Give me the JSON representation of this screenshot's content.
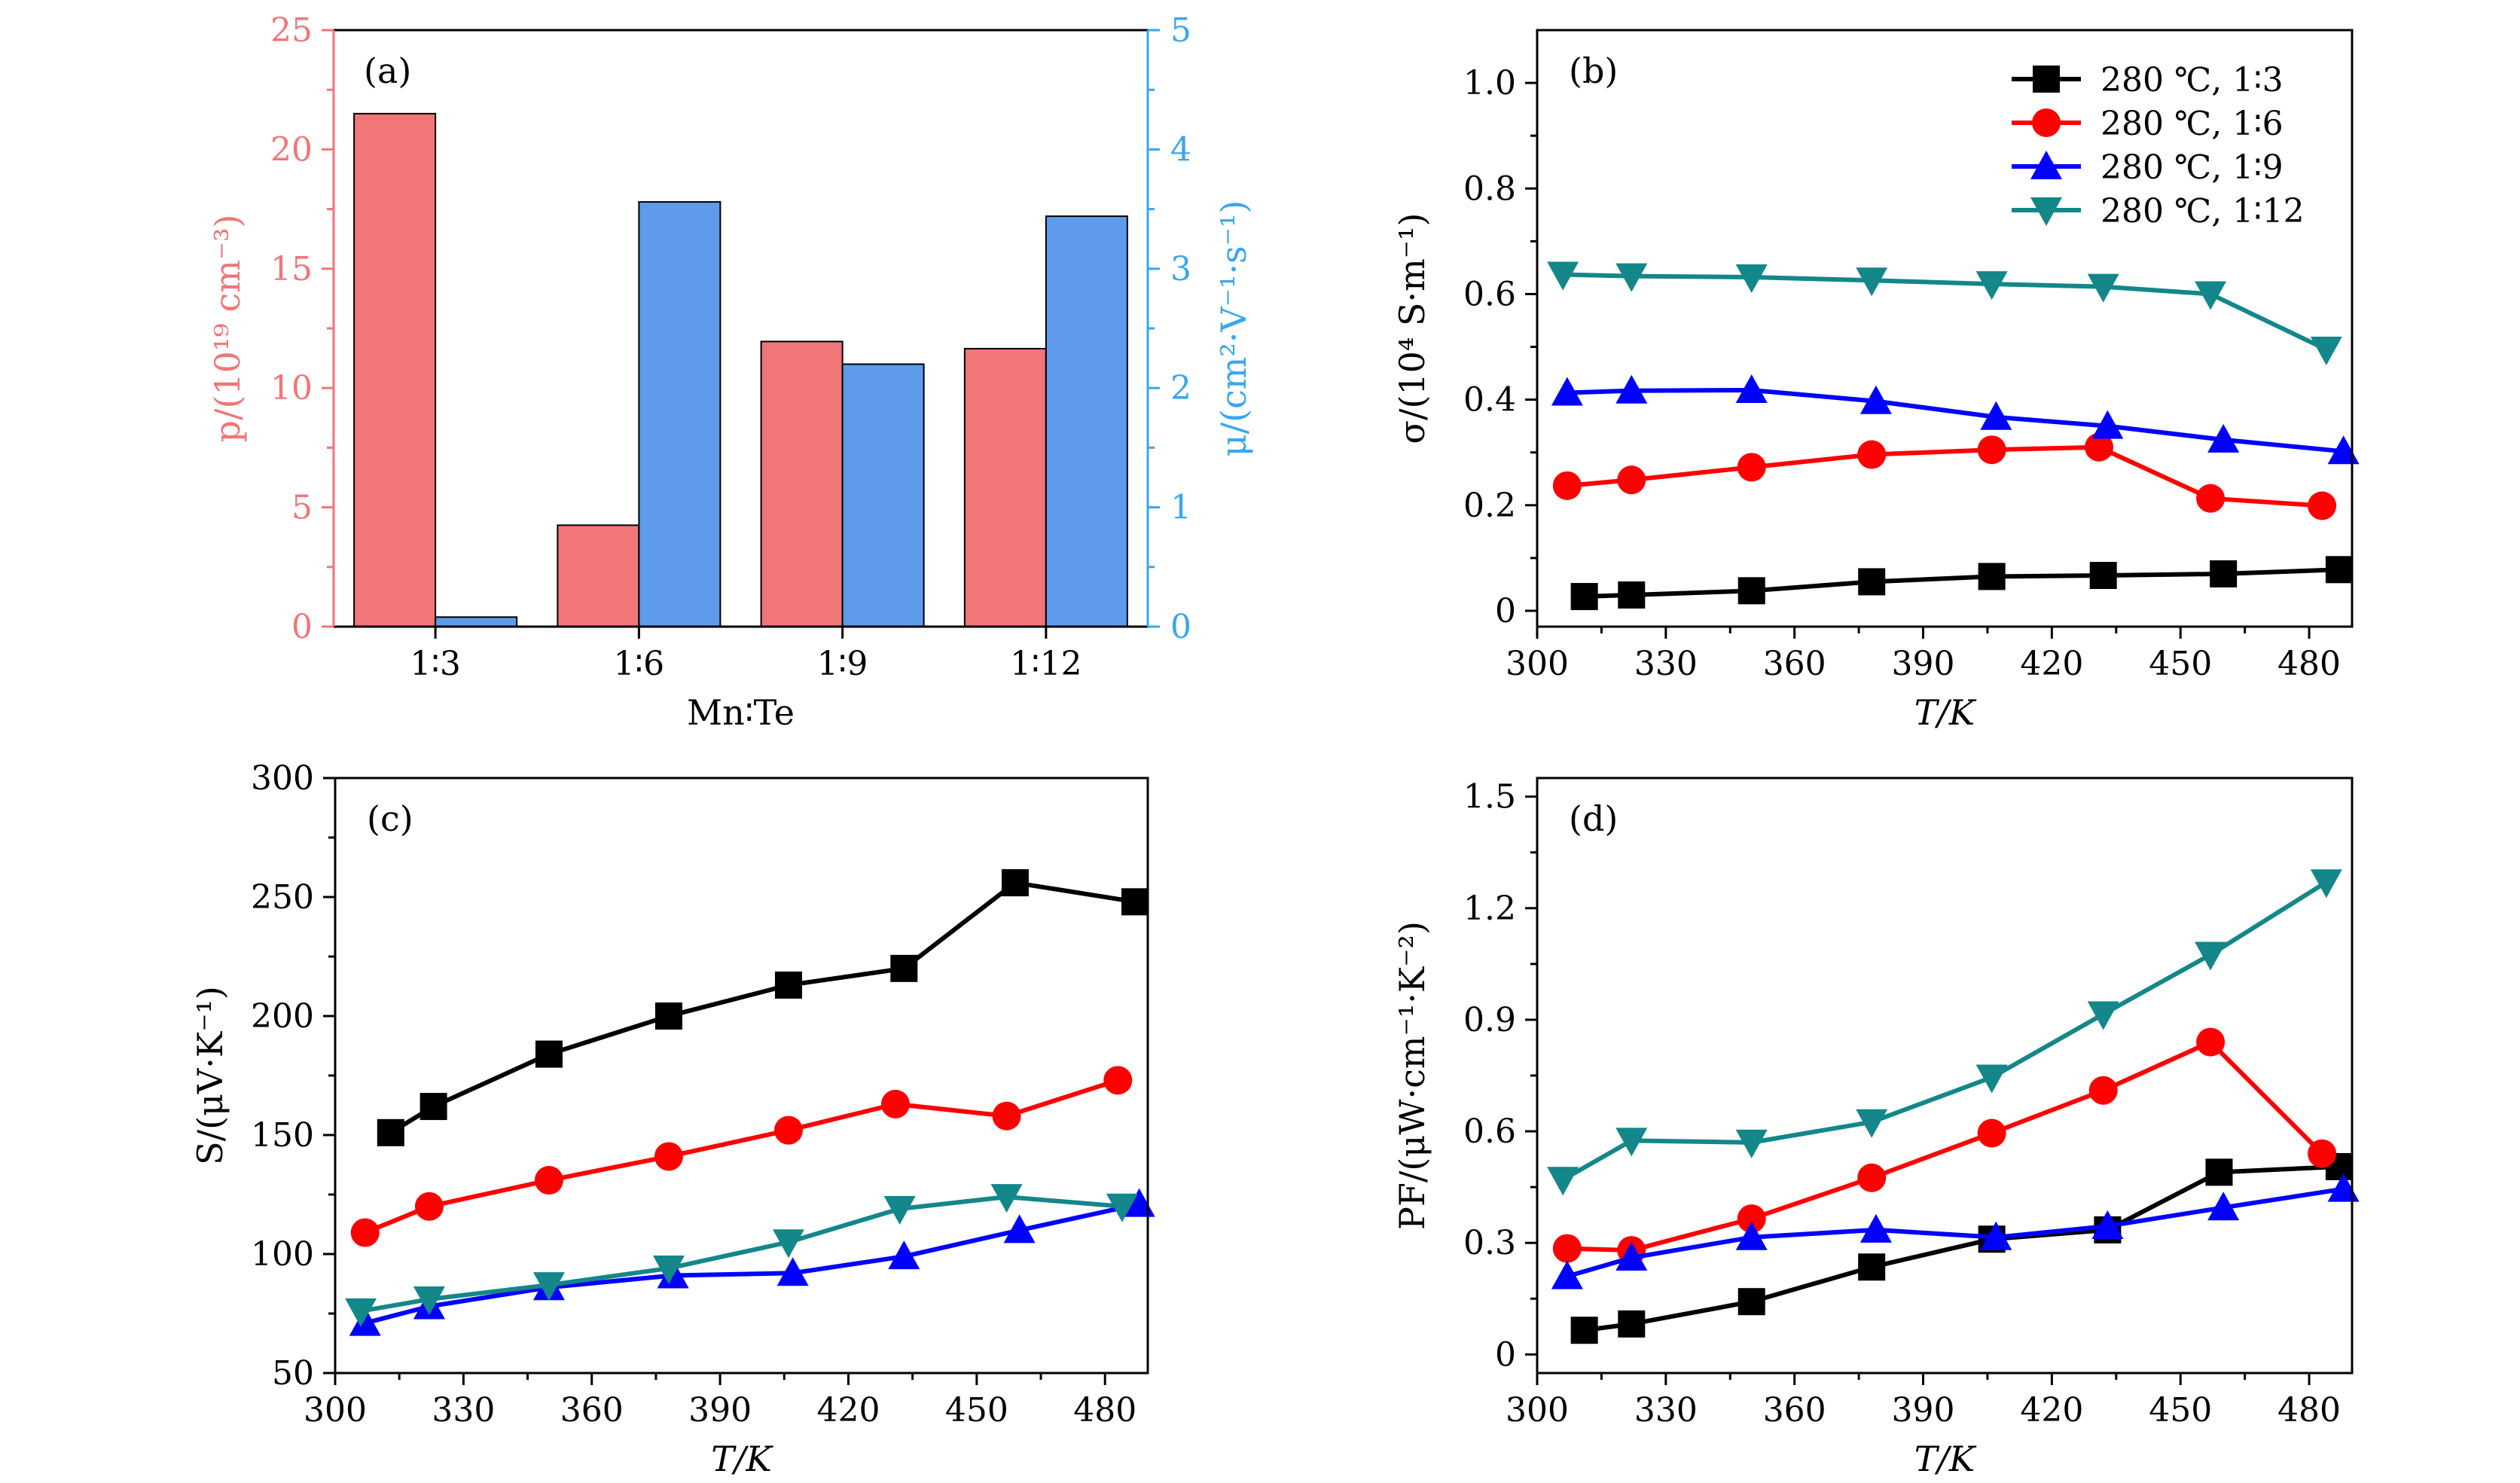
{
  "colors": {
    "bar_p": "#F07678",
    "bar_mu": "#5E9BEB",
    "axis_p": "#F07678",
    "axis_mu": "#39A6EF",
    "s1": "#000000",
    "s2": "#FF0000",
    "s3": "#0000FF",
    "s4": "#13878A"
  },
  "legend": [
    "280 ℃, 1∶3",
    "280 ℃, 1∶6",
    "280 ℃, 1∶9",
    "280 ℃, 1∶12"
  ],
  "chart_data": [
    {
      "panel": "(a)",
      "type": "bar",
      "xlabel": "Mn∶Te",
      "ylabel_left": "p/(10¹⁹ cm⁻³)",
      "ylabel_right": "μ/(cm²·V⁻¹·s⁻¹)",
      "categories": [
        "1∶3",
        "1∶6",
        "1∶9",
        "1∶12"
      ],
      "series": [
        {
          "values": [
            21.5,
            4.25,
            11.95,
            11.65
          ],
          "axis": "left"
        },
        {
          "values": [
            0.08,
            3.56,
            2.2,
            3.44
          ],
          "axis": "right"
        }
      ],
      "ylim_left": [
        0,
        25
      ],
      "yticks_left": [
        "0",
        "5",
        "10",
        "15",
        "20",
        "25"
      ],
      "ylim_right": [
        0,
        5
      ],
      "yticks_right": [
        "0",
        "1",
        "2",
        "3",
        "4",
        "5"
      ]
    },
    {
      "panel": "(b)",
      "type": "line",
      "xlabel": "T/K",
      "ylabel": "σ/(10⁴ S·m⁻¹)",
      "xlim": [
        300,
        490
      ],
      "ylim": [
        -0.03,
        1.1
      ],
      "xticks": [
        "300",
        "330",
        "360",
        "390",
        "420",
        "450",
        "480"
      ],
      "yticks": [
        "0",
        "0.2",
        "0.4",
        "0.6",
        "0.8",
        "1.0"
      ],
      "legend_position": "top-right",
      "series": [
        {
          "name": "280 ℃, 1∶3",
          "marker": "square",
          "x": [
            311,
            322,
            350,
            378,
            406,
            432,
            460,
            487
          ],
          "y": [
            0.027,
            0.03,
            0.038,
            0.055,
            0.065,
            0.067,
            0.07,
            0.078
          ]
        },
        {
          "name": "280 ℃, 1∶6",
          "marker": "circle",
          "x": [
            307,
            322,
            350,
            378,
            406,
            431,
            457,
            483
          ],
          "y": [
            0.237,
            0.248,
            0.272,
            0.296,
            0.305,
            0.31,
            0.213,
            0.199
          ]
        },
        {
          "name": "280 ℃, 1∶9",
          "marker": "triangle-up",
          "x": [
            307,
            322,
            350,
            379,
            407,
            433,
            460,
            488
          ],
          "y": [
            0.413,
            0.417,
            0.418,
            0.397,
            0.367,
            0.35,
            0.324,
            0.302
          ]
        },
        {
          "name": "280 ℃, 1∶12",
          "marker": "triangle-down",
          "x": [
            306,
            322,
            350,
            378,
            406,
            432,
            457,
            484
          ],
          "y": [
            0.637,
            0.634,
            0.632,
            0.626,
            0.619,
            0.614,
            0.6,
            0.495
          ]
        }
      ]
    },
    {
      "panel": "(c)",
      "type": "line",
      "xlabel": "T/K",
      "ylabel": "S/(μV·K⁻¹)",
      "xlim": [
        300,
        490
      ],
      "ylim": [
        50,
        300
      ],
      "xticks": [
        "300",
        "330",
        "360",
        "390",
        "420",
        "450",
        "480"
      ],
      "yticks": [
        "50",
        "100",
        "150",
        "200",
        "250",
        "300"
      ],
      "series": [
        {
          "name": "280 ℃, 1∶3",
          "marker": "square",
          "x": [
            313,
            323,
            350,
            378,
            406,
            433,
            459,
            487
          ],
          "y": [
            151,
            162,
            184,
            200,
            213,
            220,
            256,
            248
          ]
        },
        {
          "name": "280 ℃, 1∶6",
          "marker": "circle",
          "x": [
            307,
            322,
            350,
            378,
            406,
            431,
            457,
            483
          ],
          "y": [
            109,
            120,
            131,
            141,
            152,
            163,
            158,
            173
          ]
        },
        {
          "name": "280 ℃, 1∶9",
          "marker": "triangle-up",
          "x": [
            307,
            322,
            350,
            379,
            407,
            433,
            460,
            488
          ],
          "y": [
            71,
            78,
            86,
            91,
            92,
            99,
            110,
            121
          ]
        },
        {
          "name": "280 ℃, 1∶12",
          "marker": "triangle-down",
          "x": [
            306,
            322,
            350,
            378,
            406,
            432,
            457,
            484
          ],
          "y": [
            76,
            81,
            87,
            94,
            105,
            119,
            124,
            120
          ]
        }
      ]
    },
    {
      "panel": "(d)",
      "type": "line",
      "xlabel": "T/K",
      "ylabel": "PF/(μW·cm⁻¹·K⁻²)",
      "xlim": [
        300,
        490
      ],
      "ylim": [
        -0.05,
        1.55
      ],
      "xticks": [
        "300",
        "330",
        "360",
        "390",
        "420",
        "450",
        "480"
      ],
      "yticks": [
        "0",
        "0.3",
        "0.6",
        "0.9",
        "1.2",
        "1.5"
      ],
      "series": [
        {
          "name": "280 ℃, 1∶3",
          "marker": "square",
          "x": [
            311,
            322,
            350,
            378,
            406,
            433,
            459,
            487
          ],
          "y": [
            0.065,
            0.082,
            0.142,
            0.235,
            0.31,
            0.335,
            0.49,
            0.505
          ]
        },
        {
          "name": "280 ℃, 1∶6",
          "marker": "circle",
          "x": [
            307,
            322,
            350,
            378,
            406,
            432,
            457,
            483
          ],
          "y": [
            0.285,
            0.28,
            0.365,
            0.475,
            0.595,
            0.71,
            0.84,
            0.54
          ]
        },
        {
          "name": "280 ℃, 1∶9",
          "marker": "triangle-up",
          "x": [
            307,
            322,
            350,
            379,
            407,
            433,
            460,
            488
          ],
          "y": [
            0.21,
            0.26,
            0.315,
            0.335,
            0.315,
            0.345,
            0.395,
            0.445
          ]
        },
        {
          "name": "280 ℃, 1∶12",
          "marker": "triangle-down",
          "x": [
            306,
            322,
            350,
            378,
            406,
            432,
            457,
            484
          ],
          "y": [
            0.47,
            0.575,
            0.57,
            0.625,
            0.745,
            0.915,
            1.075,
            1.27
          ]
        }
      ]
    }
  ]
}
